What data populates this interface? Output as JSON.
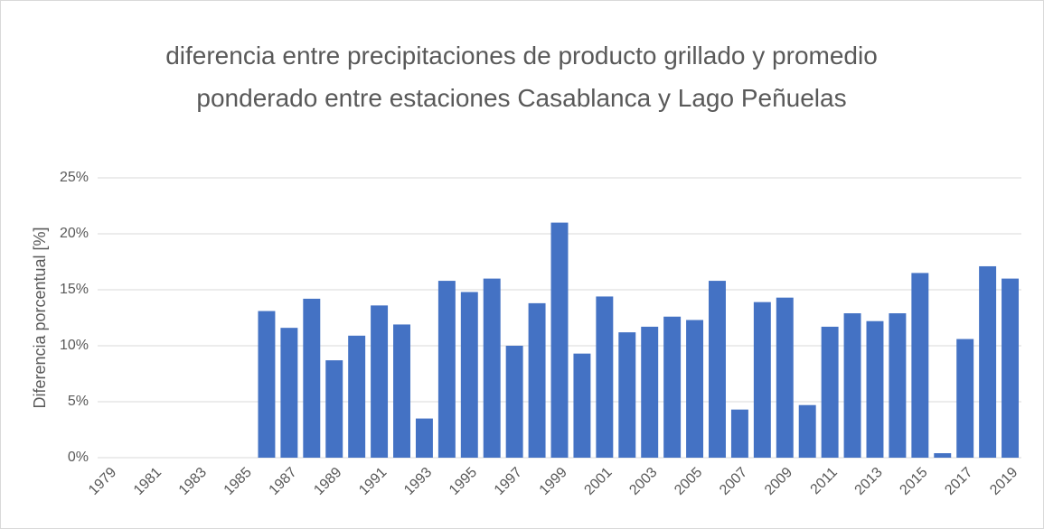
{
  "chart_data": {
    "type": "bar",
    "title": "diferencia entre precipitaciones de producto grillado y promedio ponderado entre estaciones Casablanca y Lago Peñuelas",
    "y_axis_label": "Diferencia porcentual [%]",
    "categories": [
      "1979",
      null,
      "1981",
      null,
      "1983",
      null,
      "1985",
      null,
      "1987",
      null,
      "1989",
      null,
      "1991",
      null,
      "1993",
      null,
      "1995",
      null,
      "1997",
      null,
      "1999",
      null,
      "2001",
      null,
      "2003",
      null,
      "2005",
      null,
      "2007",
      null,
      "2009",
      null,
      "2011",
      null,
      "2013",
      null,
      "2015",
      null,
      "2017",
      null,
      "2019"
    ],
    "values": [
      null,
      null,
      null,
      null,
      null,
      null,
      null,
      13.1,
      11.6,
      14.2,
      8.7,
      10.9,
      13.6,
      11.9,
      3.5,
      15.8,
      14.8,
      16.0,
      10.0,
      13.8,
      21.0,
      9.3,
      14.4,
      11.2,
      11.7,
      12.6,
      12.3,
      15.8,
      4.3,
      13.9,
      14.3,
      4.7,
      11.7,
      12.9,
      12.2,
      12.9,
      16.5,
      0.4,
      10.6,
      17.1,
      16.0
    ],
    "color": "#4472c4",
    "ylim": [
      0,
      25
    ],
    "yticks": [
      {
        "value": 0,
        "label": "0%"
      },
      {
        "value": 5,
        "label": "5%"
      },
      {
        "value": 10,
        "label": "10%"
      },
      {
        "value": 15,
        "label": "15%"
      },
      {
        "value": 20,
        "label": "20%"
      },
      {
        "value": 25,
        "label": "25%"
      }
    ],
    "grid": true
  }
}
